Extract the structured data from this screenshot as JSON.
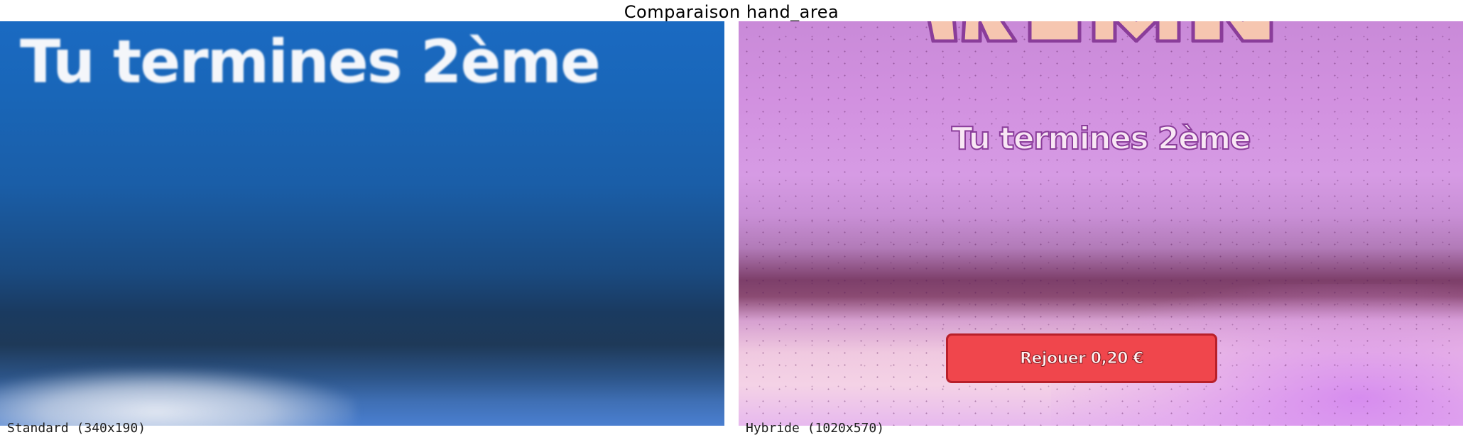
{
  "title": "Comparaison hand_area",
  "panels": {
    "standard": {
      "overlay_text": "Tu termines 2ème",
      "caption": "Standard (340x190)",
      "colors": {
        "top": "#1a6ac2",
        "middle": "#1a3a60",
        "bottom": "#4a7fd0",
        "text": "#f4f6fa"
      }
    },
    "hybrid": {
      "overlay_text": "Tu termines 2ème",
      "button_label": "Rejouer 0,20 €",
      "caption": "Hybride (1020x570)",
      "colors": {
        "background": "#d291e0",
        "button": "#f0464c",
        "button_border": "#b8202a",
        "text_outline": "#8a3d9a"
      }
    }
  }
}
